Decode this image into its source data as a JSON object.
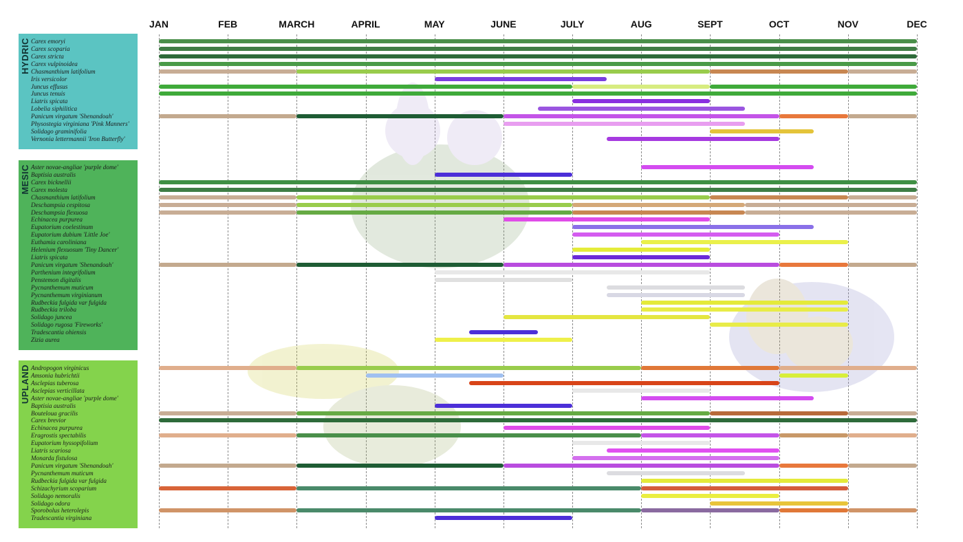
{
  "chart_data": {
    "type": "gantt",
    "x_axis_ticks": [
      "JAN",
      "FEB",
      "MARCH",
      "APRIL",
      "MAY",
      "JUNE",
      "JULY",
      "AUG",
      "SEPT",
      "OCT",
      "NOV",
      "DEC"
    ],
    "xlim": [
      1,
      12
    ],
    "groups": [
      {
        "name": "HYDRIC",
        "color": "#5bc4c2",
        "plants": [
          {
            "name": "Carex emoryi",
            "segments": [
              [
                1,
                12,
                "#4a8f4a"
              ]
            ]
          },
          {
            "name": "Carex scoparia",
            "segments": [
              [
                1,
                12,
                "#3f7d45"
              ]
            ]
          },
          {
            "name": "Carex stricta",
            "segments": [
              [
                1,
                12,
                "#2e6b3a"
              ]
            ]
          },
          {
            "name": "Carex vulpinoidea",
            "segments": [
              [
                1,
                12,
                "#4a9a48"
              ]
            ]
          },
          {
            "name": "Chasmanthium latifolium",
            "segments": [
              [
                1,
                3,
                "#c8ad95"
              ],
              [
                3,
                9,
                "#99cc4c"
              ],
              [
                9,
                11,
                "#c88752"
              ],
              [
                11,
                12,
                "#c8ad95"
              ]
            ]
          },
          {
            "name": "Iris versicolor",
            "segments": [
              [
                5,
                7.5,
                "#7a3ee0"
              ]
            ]
          },
          {
            "name": "Juncus effusus",
            "segments": [
              [
                1,
                7,
                "#3faa3a"
              ],
              [
                7,
                9,
                "#d7ec80"
              ],
              [
                9,
                12,
                "#3faa3a"
              ]
            ]
          },
          {
            "name": "Juncus tenuis",
            "segments": [
              [
                1,
                12,
                "#3faa3a"
              ]
            ]
          },
          {
            "name": "Liatris spicata",
            "segments": [
              [
                7,
                9,
                "#8a2fe0"
              ]
            ]
          },
          {
            "name": "Lobelia siphilitica",
            "segments": [
              [
                6.5,
                9.5,
                "#9a55e0"
              ]
            ]
          },
          {
            "name": "Panicum virgatum 'Shenandoah'",
            "segments": [
              [
                1,
                3,
                "#c3a98e"
              ],
              [
                3,
                6,
                "#1e5c34"
              ],
              [
                6,
                10,
                "#c454e8"
              ],
              [
                10,
                11,
                "#e8783c"
              ],
              [
                11,
                12,
                "#c3a98e"
              ]
            ]
          },
          {
            "name": "Physostegia virginiana 'Pink Manners'",
            "segments": [
              [
                6,
                9.5,
                "#e89ef0"
              ]
            ]
          },
          {
            "name": "Solidago graminifolia",
            "segments": [
              [
                9,
                10.5,
                "#e4c43a"
              ]
            ]
          },
          {
            "name": "Vernonia lettermannii 'Iron Butterfly'",
            "segments": [
              [
                7.5,
                10,
                "#a63ae0"
              ]
            ]
          }
        ]
      },
      {
        "name": "MESIC",
        "color": "#4fb35a",
        "plants": [
          {
            "name": "Aster novae-angliae 'purple dome'",
            "segments": [
              [
                8,
                10.5,
                "#d44cf0"
              ]
            ]
          },
          {
            "name": "Baptisia australis",
            "segments": [
              [
                5,
                7,
                "#4c2fd8"
              ]
            ]
          },
          {
            "name": "Carex bicknellii",
            "segments": [
              [
                1,
                12,
                "#3f8f44"
              ]
            ]
          },
          {
            "name": "Carex molesta",
            "segments": [
              [
                1,
                12,
                "#3f7d45"
              ]
            ]
          },
          {
            "name": "Chasmanthium latifolium",
            "segments": [
              [
                1,
                3,
                "#c8ad95"
              ],
              [
                3,
                9,
                "#99cc4c"
              ],
              [
                9,
                11,
                "#c88752"
              ],
              [
                11,
                12,
                "#c8ad95"
              ]
            ]
          },
          {
            "name": "Deschampsia cespitosa",
            "segments": [
              [
                1,
                3,
                "#c8ad95"
              ],
              [
                3,
                7,
                "#99cc4c"
              ],
              [
                7,
                9.5,
                "#d4a878"
              ],
              [
                9.5,
                12,
                "#c8ad95"
              ]
            ]
          },
          {
            "name": "Deschampsia flexuosa",
            "segments": [
              [
                1,
                3,
                "#c8ad95"
              ],
              [
                3,
                7,
                "#66aa44"
              ],
              [
                7,
                9.5,
                "#c88752"
              ],
              [
                9.5,
                12,
                "#c8ad95"
              ]
            ]
          },
          {
            "name": "Echinacea purpurea",
            "segments": [
              [
                6,
                9,
                "#e04ce8"
              ]
            ]
          },
          {
            "name": "Eupatorium coelestinum",
            "segments": [
              [
                7,
                10.5,
                "#8a70e8"
              ]
            ]
          },
          {
            "name": "Eupatorium dubium 'Little Joe'",
            "segments": [
              [
                7,
                10,
                "#d45cf0"
              ]
            ]
          },
          {
            "name": "Euthamia caroliniana",
            "segments": [
              [
                8,
                11,
                "#eaf04a"
              ]
            ]
          },
          {
            "name": "Helenium flexuosum 'Tiny Dancer'",
            "segments": [
              [
                7,
                9,
                "#e4ec3a"
              ]
            ]
          },
          {
            "name": "Liatris spicata",
            "segments": [
              [
                7,
                9,
                "#6a2ad8"
              ]
            ]
          },
          {
            "name": "Panicum virgatum 'Shenandoah'",
            "segments": [
              [
                1,
                3,
                "#c3a98e"
              ],
              [
                3,
                6,
                "#1e5c34"
              ],
              [
                6,
                10,
                "#b94cdf"
              ],
              [
                10,
                11,
                "#e8783c"
              ],
              [
                11,
                12,
                "#c3a98e"
              ]
            ]
          },
          {
            "name": "Parthenium integrifolium",
            "segments": [
              [
                5,
                9,
                "#e8e8e8"
              ]
            ]
          },
          {
            "name": "Penstemon digitalis",
            "segments": [
              [
                5,
                7,
                "#e0e0e0"
              ]
            ]
          },
          {
            "name": "Pycnanthemum muticum",
            "segments": [
              [
                7.5,
                9.5,
                "#dcdce0"
              ]
            ]
          },
          {
            "name": "Pycnanthemum virginianum",
            "segments": [
              [
                7.5,
                9.5,
                "#d8d8e4"
              ]
            ]
          },
          {
            "name": "Rudbeckia fulgida var fulgida",
            "segments": [
              [
                8,
                11,
                "#e4ea3a"
              ]
            ]
          },
          {
            "name": "Rudbeckia triloba",
            "segments": [
              [
                8,
                11,
                "#e8ec48"
              ]
            ]
          },
          {
            "name": "Solidago juncea",
            "segments": [
              [
                6,
                9,
                "#e4e640"
              ]
            ]
          },
          {
            "name": "Solidago rugosa 'Fireworks'",
            "segments": [
              [
                9,
                11,
                "#e8ec48"
              ]
            ]
          },
          {
            "name": "Tradescantia ohiensis",
            "segments": [
              [
                5.5,
                6.5,
                "#4c2fd8"
              ]
            ]
          },
          {
            "name": "Zizia aurea",
            "segments": [
              [
                5,
                7,
                "#eef04a"
              ]
            ]
          }
        ]
      },
      {
        "name": "UPLAND",
        "color": "#84d34c",
        "plants": [
          {
            "name": "Andropogon virginicus",
            "segments": [
              [
                1,
                3,
                "#e0ae8c"
              ],
              [
                3,
                8,
                "#99cc4c"
              ],
              [
                8,
                10,
                "#e07838"
              ],
              [
                10,
                12,
                "#e0ae8c"
              ]
            ]
          },
          {
            "name": "Amsonia hubrichtii",
            "segments": [
              [
                4,
                6,
                "#a0c0f0"
              ],
              [
                10,
                11,
                "#d8ee3a"
              ]
            ]
          },
          {
            "name": "Asclepias tuberosa",
            "segments": [
              [
                5.5,
                10,
                "#d84418"
              ]
            ]
          },
          {
            "name": "Asclepias verticillata",
            "segments": [
              [
                7,
                9,
                "#e8e8e8"
              ]
            ]
          },
          {
            "name": "Aster novae-angliae 'purple dome'",
            "segments": [
              [
                8,
                10.5,
                "#d44cf0"
              ]
            ]
          },
          {
            "name": "Baptisia australis",
            "segments": [
              [
                5,
                7,
                "#4c2fd8"
              ]
            ]
          },
          {
            "name": "Bouteloua gracilis",
            "segments": [
              [
                1,
                3,
                "#c8ad95"
              ],
              [
                3,
                9,
                "#66aa44"
              ],
              [
                9,
                11,
                "#b86a3a"
              ],
              [
                11,
                12,
                "#c8ad95"
              ]
            ]
          },
          {
            "name": "Carex brevior",
            "segments": [
              [
                1,
                12,
                "#2e6b3a"
              ]
            ]
          },
          {
            "name": "Echinacea purpurea",
            "segments": [
              [
                6,
                9,
                "#e04ce8"
              ]
            ]
          },
          {
            "name": "Eragrostis spectabilis",
            "segments": [
              [
                1,
                3,
                "#e0ae8c"
              ],
              [
                3,
                8,
                "#4a8f4a"
              ],
              [
                8,
                10,
                "#c454e8"
              ],
              [
                10,
                11,
                "#c89868"
              ],
              [
                11,
                12,
                "#e0ae8c"
              ]
            ]
          },
          {
            "name": "Eupatorium hyssopifolium",
            "segments": [
              [
                7,
                9,
                "#e8e8e8"
              ]
            ]
          },
          {
            "name": "Liatris scariosa",
            "segments": [
              [
                7.5,
                10,
                "#e050f0"
              ]
            ]
          },
          {
            "name": "Monarda fistulosa",
            "segments": [
              [
                7,
                10,
                "#d470ee"
              ]
            ]
          },
          {
            "name": "Panicum virgatum 'Shenandoah'",
            "segments": [
              [
                1,
                3,
                "#c3a98e"
              ],
              [
                3,
                6,
                "#1e5c34"
              ],
              [
                6,
                10,
                "#b94cdf"
              ],
              [
                10,
                11,
                "#e8783c"
              ],
              [
                11,
                12,
                "#c3a98e"
              ]
            ]
          },
          {
            "name": "Pycnanthemum muticum",
            "segments": [
              [
                7.5,
                9.5,
                "#dcdce0"
              ]
            ]
          },
          {
            "name": "Rudbeckia fulgida var fulgida",
            "segments": [
              [
                8,
                11,
                "#e4ea3a"
              ]
            ]
          },
          {
            "name": "Schizachyrium scoparium",
            "segments": [
              [
                1,
                3,
                "#d86438"
              ],
              [
                3,
                8,
                "#4a8a6a"
              ],
              [
                8,
                11,
                "#d45c3c"
              ]
            ]
          },
          {
            "name": "Solidago nemoralis",
            "segments": [
              [
                8,
                10,
                "#eaee40"
              ]
            ]
          },
          {
            "name": "Solidago odora",
            "segments": [
              [
                9,
                11,
                "#e8c43a"
              ]
            ]
          },
          {
            "name": "Sporobolus heterolepis",
            "segments": [
              [
                1,
                3,
                "#d09468"
              ],
              [
                3,
                8,
                "#4a8a6a"
              ],
              [
                8,
                10,
                "#8a6aa0"
              ],
              [
                10,
                11,
                "#e07838"
              ],
              [
                11,
                12,
                "#d09468"
              ]
            ]
          },
          {
            "name": "Tradescantia virginiana",
            "segments": [
              [
                5,
                7,
                "#4c2fd8"
              ]
            ]
          }
        ]
      }
    ]
  }
}
